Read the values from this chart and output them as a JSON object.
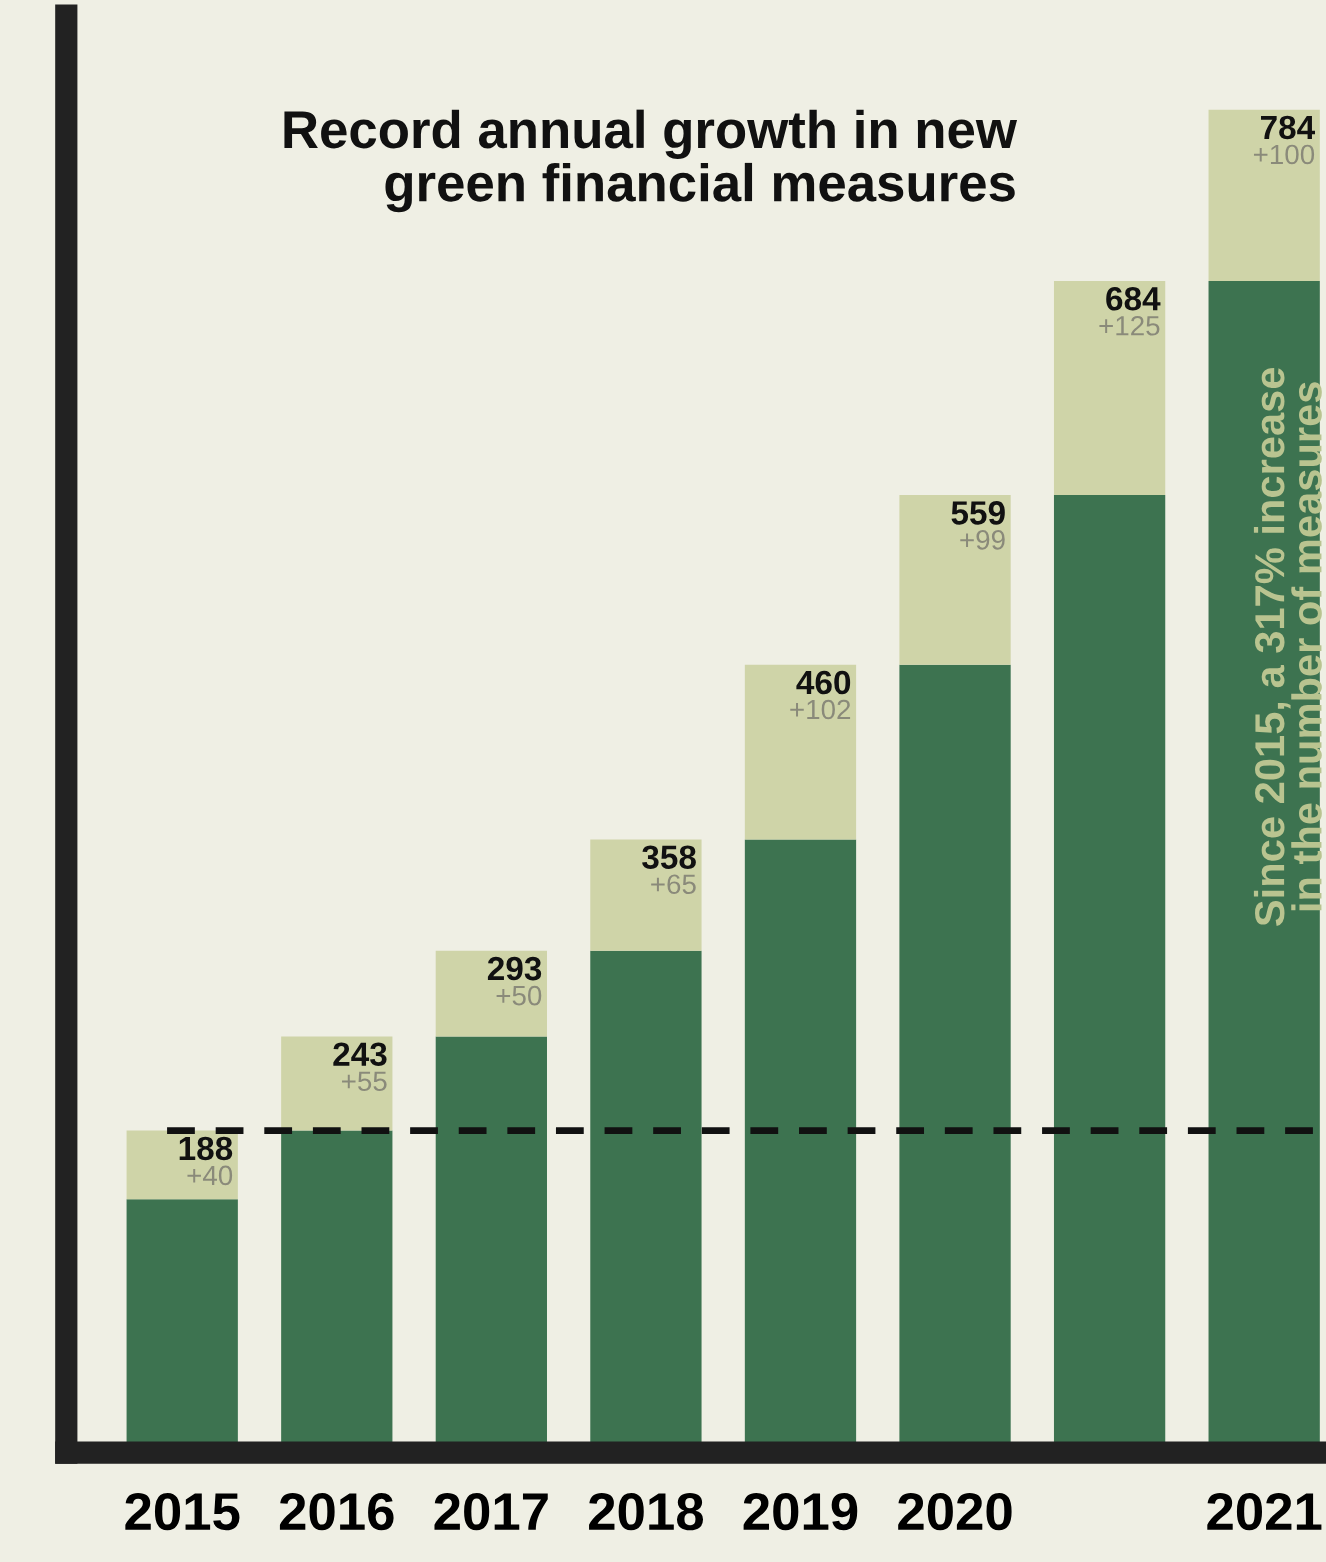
{
  "chart_data": {
    "type": "bar",
    "stacked": true,
    "title": "Record annual growth in new\ngreen financial measures",
    "categories": [
      "2015",
      "2016",
      "2017",
      "2018",
      "2019",
      "2020",
      null,
      "2021"
    ],
    "series": [
      {
        "color": "#3d7350",
        "values": [
          148,
          188,
          243,
          293,
          358,
          460,
          559,
          684
        ]
      },
      {
        "color": "#cfd4a8",
        "values": [
          40,
          55,
          50,
          65,
          102,
          99,
          125,
          100
        ],
        "value_labels": [
          "+40",
          "+55",
          "+50",
          "+65",
          "+102",
          "+99",
          "+125",
          "+100"
        ]
      }
    ],
    "totals": [
      "188",
      "243",
      "293",
      "358",
      "460",
      "559",
      "684",
      "784"
    ],
    "ref_lines": [
      {
        "axis": "y",
        "value": 188,
        "line_style": "dashed",
        "color": "#111111"
      }
    ],
    "annotations": [
      "Since 2015, a 317% increase\nin the number of measures"
    ],
    "tick_labels": "x",
    "grid": false,
    "legend": false
  }
}
